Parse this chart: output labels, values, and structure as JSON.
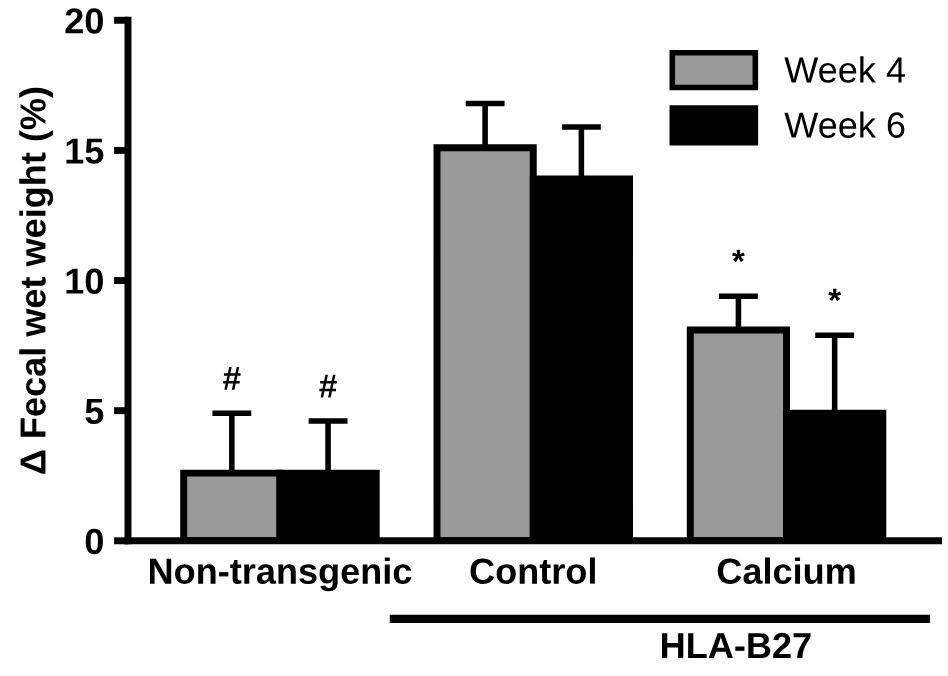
{
  "chart_data": {
    "type": "bar",
    "ylabel": "Δ Fecal wet weight (%)",
    "categories": [
      "Non-transgenic",
      "Control",
      "Calcium"
    ],
    "series": [
      {
        "name": "Week 4",
        "color": "#999999",
        "values": [
          2.6,
          15.1,
          8.1
        ],
        "errors": [
          2.3,
          1.7,
          1.3
        ]
      },
      {
        "name": "Week 6",
        "color": "#000000",
        "values": [
          2.6,
          13.9,
          4.9
        ],
        "errors": [
          2.0,
          2.0,
          3.0
        ]
      }
    ],
    "ylim": [
      0,
      20
    ],
    "yticks": [
      0,
      5,
      10,
      15,
      20
    ],
    "grid": false,
    "legend": "top right",
    "annotations": [
      "#",
      "#",
      "*",
      "*",
      "HLA-B27"
    ]
  }
}
